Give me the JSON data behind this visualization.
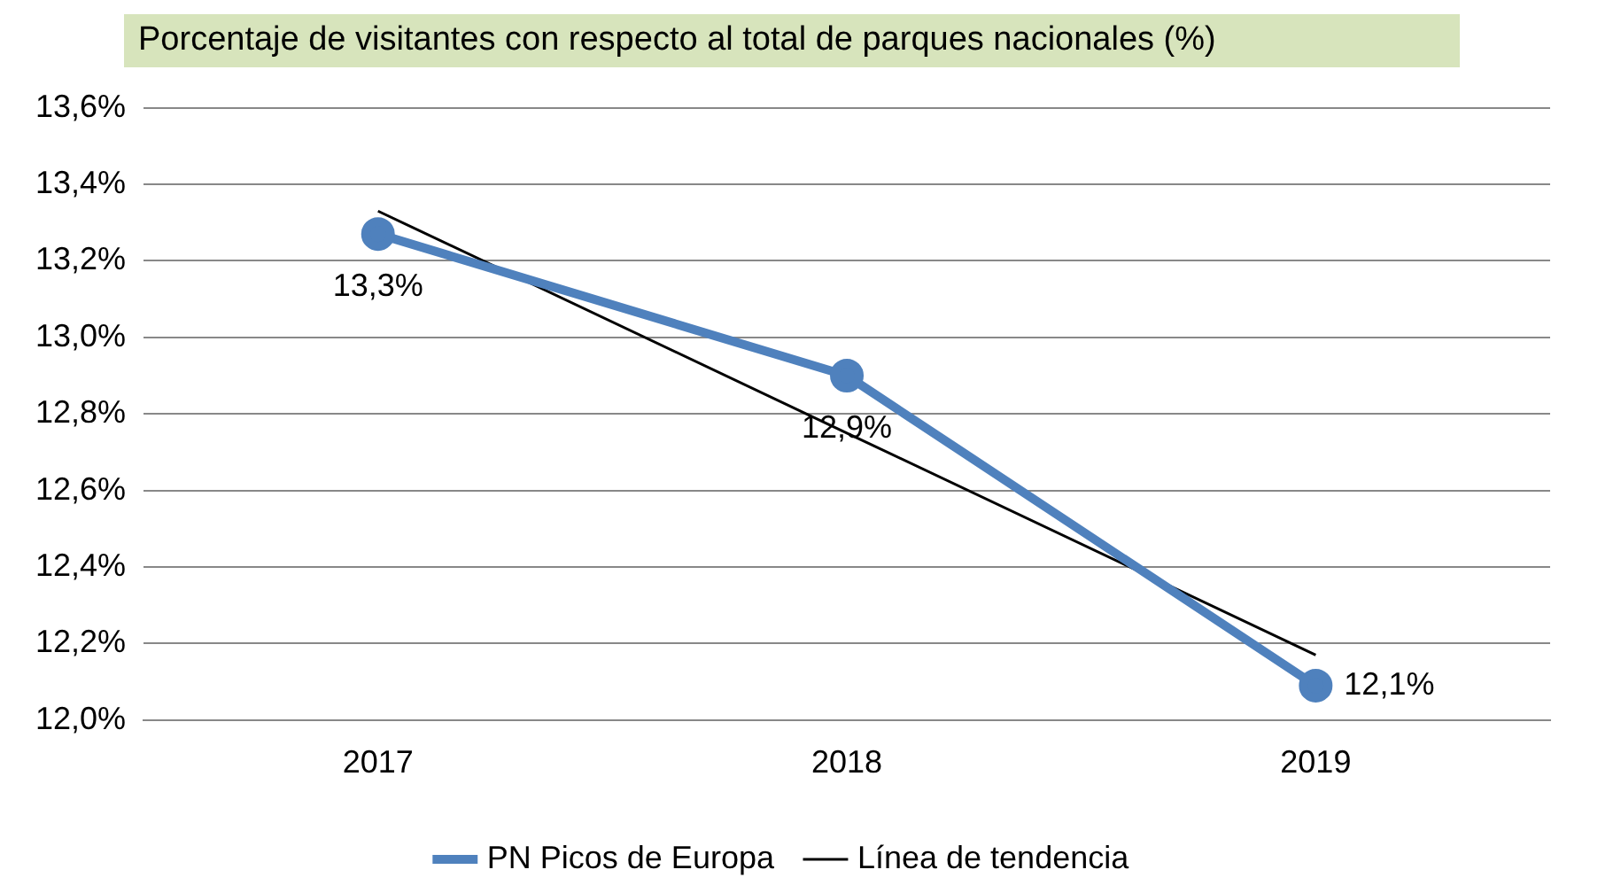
{
  "chart_data": {
    "type": "line",
    "title": "Porcentaje de visitantes  con respecto al total de parques nacionales (%)",
    "categories": [
      "2017",
      "2018",
      "2019"
    ],
    "series": [
      {
        "name": "PN Picos de Europa",
        "color": "#4f81bd",
        "values": [
          13.27,
          12.9,
          12.09
        ],
        "value_labels": [
          "13,3%",
          "12,9%",
          "12,1%"
        ],
        "marker": "circle"
      },
      {
        "name": "Línea de tendencia",
        "type": "line",
        "color": "#000000",
        "values": [
          13.33,
          12.75,
          12.17
        ],
        "marker": "none"
      }
    ],
    "ylim": [
      12.0,
      13.6
    ],
    "yticks": [
      {
        "value": 12.0,
        "label": "12,0%"
      },
      {
        "value": 12.2,
        "label": "12,2%"
      },
      {
        "value": 12.4,
        "label": "12,4%"
      },
      {
        "value": 12.6,
        "label": "12,6%"
      },
      {
        "value": 12.8,
        "label": "12,8%"
      },
      {
        "value": 13.0,
        "label": "13,0%"
      },
      {
        "value": 13.2,
        "label": "13,2%"
      },
      {
        "value": 13.4,
        "label": "13,4%"
      },
      {
        "value": 13.6,
        "label": "13,6%"
      }
    ],
    "grid": "y",
    "legend": "bottom"
  }
}
